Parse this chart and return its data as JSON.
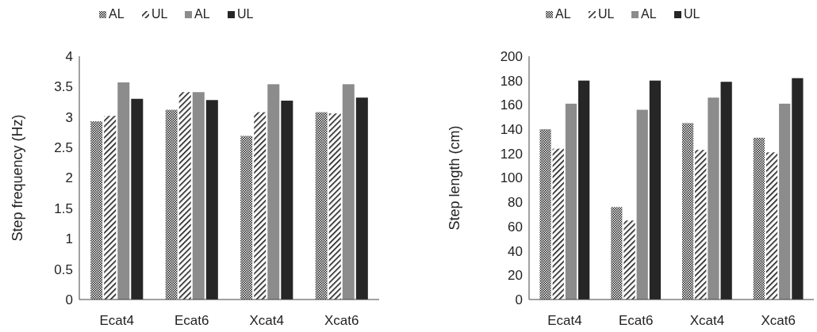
{
  "chart_data": [
    {
      "type": "bar",
      "ylabel": "Step frequency (Hz)",
      "categories": [
        "Ecat4",
        "Ecat6",
        "Xcat4",
        "Xcat6"
      ],
      "ylim": [
        0,
        4
      ],
      "yticks": [
        0,
        0.5,
        1,
        1.5,
        2,
        2.5,
        3,
        3.5,
        4
      ],
      "legend": "top",
      "grid": false,
      "series": [
        {
          "name": "AL",
          "color": "#1a1a1a",
          "values": [
            2.93,
            3.12,
            2.69,
            3.08
          ]
        },
        {
          "name": "UL",
          "color": "#1a1a1a",
          "values": [
            3.02,
            3.41,
            3.08,
            3.06
          ]
        },
        {
          "name": "AL",
          "color": "#8c8c8c",
          "values": [
            3.57,
            3.41,
            3.54,
            3.54
          ]
        },
        {
          "name": "UL",
          "color": "#262626",
          "values": [
            3.3,
            3.28,
            3.27,
            3.32
          ]
        }
      ]
    },
    {
      "type": "bar",
      "ylabel": "Step length (cm)",
      "categories": [
        "Ecat4",
        "Ecat6",
        "Xcat4",
        "Xcat6"
      ],
      "ylim": [
        0,
        200
      ],
      "yticks": [
        0,
        20,
        40,
        60,
        80,
        100,
        120,
        140,
        160,
        180,
        200
      ],
      "legend": "top",
      "grid": false,
      "series": [
        {
          "name": "AL",
          "color": "#1a1a1a",
          "values": [
            140,
            76,
            145,
            133
          ]
        },
        {
          "name": "UL",
          "color": "#1a1a1a",
          "values": [
            124,
            65,
            123,
            121
          ]
        },
        {
          "name": "AL",
          "color": "#8c8c8c",
          "values": [
            161,
            156,
            166,
            161
          ]
        },
        {
          "name": "UL",
          "color": "#262626",
          "values": [
            180,
            180,
            179,
            182
          ]
        }
      ]
    }
  ]
}
